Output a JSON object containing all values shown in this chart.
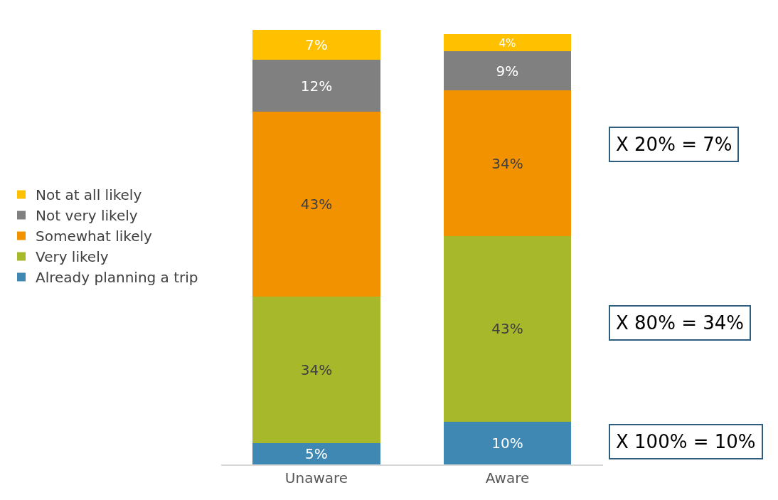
{
  "chart_data": {
    "type": "bar",
    "stacked": true,
    "categories": [
      "Unaware",
      "Aware"
    ],
    "series": [
      {
        "name": "Already planning a trip",
        "color": "#3f88b3",
        "values": [
          5,
          10
        ],
        "value_labels": [
          "5%",
          "10%"
        ]
      },
      {
        "name": "Very likely",
        "color": "#a7b92a",
        "values": [
          34,
          43
        ],
        "value_labels": [
          "34%",
          "43%"
        ]
      },
      {
        "name": "Somewhat likely",
        "color": "#f39200",
        "values": [
          43,
          34
        ],
        "value_labels": [
          "43%",
          "34%"
        ]
      },
      {
        "name": "Not very likely",
        "color": "#808080",
        "values": [
          12,
          9
        ],
        "value_labels": [
          "12%",
          "9%"
        ]
      },
      {
        "name": "Not at all likely",
        "color": "#ffc000",
        "values": [
          7,
          4
        ],
        "value_labels": [
          "7%",
          "4%"
        ]
      }
    ],
    "annotations": [
      "X 20% = 7%",
      "X 80% = 34%",
      "X 100% = 10%"
    ],
    "legend": "left"
  }
}
